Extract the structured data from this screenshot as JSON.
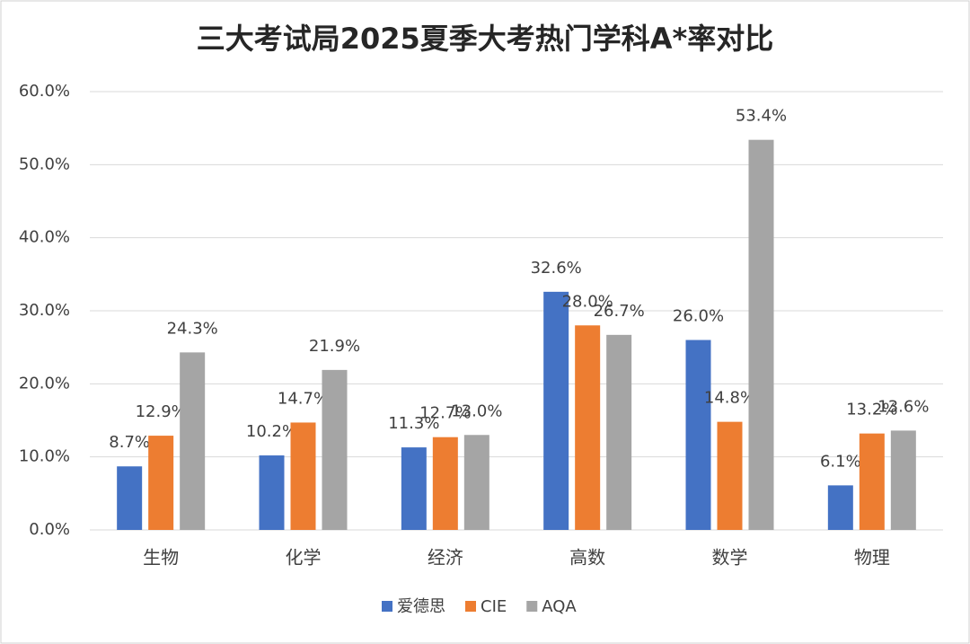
{
  "chart_data": {
    "type": "bar",
    "title": "三大考试局2025夏季大考热门学科A*率对比",
    "categories": [
      "生物",
      "化学",
      "经济",
      "高数",
      "数学",
      "物理"
    ],
    "series": [
      {
        "name": "爱德思",
        "color": "#4472c4",
        "values": [
          8.7,
          10.2,
          11.3,
          32.6,
          26.0,
          6.1
        ],
        "value_labels": [
          "8.7%",
          "10.2%",
          "11.3%",
          "32.6%",
          "26.0%",
          "6.1%"
        ]
      },
      {
        "name": "CIE",
        "color": "#ed7d31",
        "values": [
          12.9,
          14.7,
          12.7,
          28.0,
          14.8,
          13.2
        ],
        "value_labels": [
          "12.9%",
          "14.7%",
          "12.7%",
          "28.0%",
          "14.8%",
          "13.2%"
        ]
      },
      {
        "name": "AQA",
        "color": "#a5a5a5",
        "values": [
          24.3,
          21.9,
          13.0,
          26.7,
          53.4,
          13.6
        ],
        "value_labels": [
          "24.3%",
          "21.9%",
          "13.0%",
          "26.7%",
          "53.4%",
          "13.6%"
        ]
      }
    ],
    "ylim": [
      0,
      60
    ],
    "yticks": [
      {
        "value": 0,
        "label": "0.0%"
      },
      {
        "value": 10,
        "label": "10.0%"
      },
      {
        "value": 20,
        "label": "20.0%"
      },
      {
        "value": 30,
        "label": "30.0%"
      },
      {
        "value": 40,
        "label": "40.0%"
      },
      {
        "value": 50,
        "label": "50.0%"
      },
      {
        "value": 60,
        "label": "60.0%"
      }
    ],
    "grid": true,
    "legend": "bottom"
  }
}
